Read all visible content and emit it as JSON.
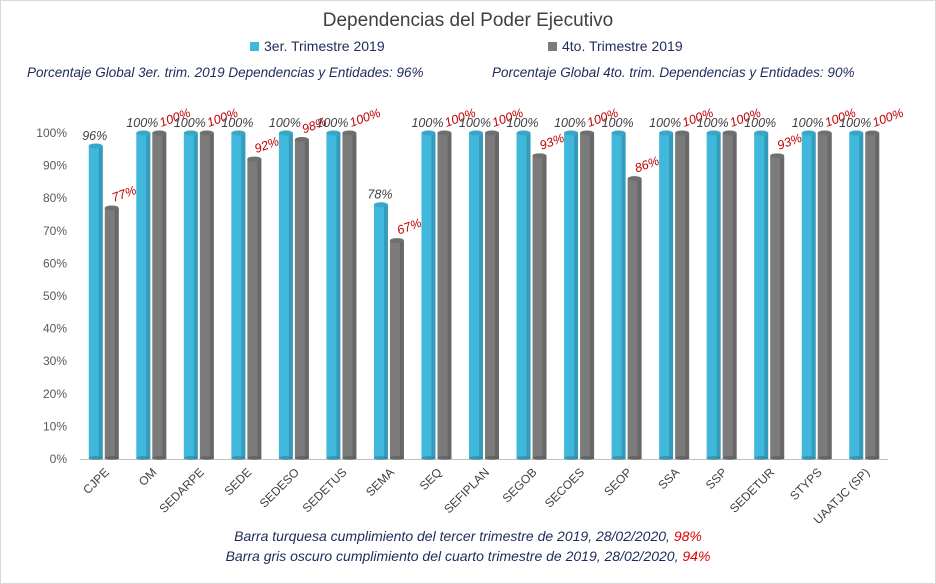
{
  "chart_data": {
    "type": "bar",
    "title": "Dependencias del Poder Ejecutivo",
    "categories": [
      "CJPE",
      "OM",
      "SEDARPE",
      "SEDE",
      "SEDESO",
      "SEDETUS",
      "SEMA",
      "SEQ",
      "SEFIPLAN",
      "SEGOB",
      "SECOES",
      "SEOP",
      "SSA",
      "SSP",
      "SEDETUR",
      "STYPS",
      "UAATJC (SP)"
    ],
    "series": [
      {
        "name": "3er. Trimestre 2019",
        "color": "#3fb8dc",
        "values": [
          96,
          100,
          100,
          100,
          100,
          100,
          78,
          100,
          100,
          100,
          100,
          100,
          100,
          100,
          100,
          100,
          100
        ],
        "labels": [
          "96%",
          "100%",
          "100%",
          "100%",
          "100%",
          "100%",
          "78%",
          "100%",
          "100%",
          "100%",
          "100%",
          "100%",
          "100%",
          "100%",
          "100%",
          "100%",
          "100%"
        ]
      },
      {
        "name": "4to. Trimestre 2019",
        "color": "#7b7b7b",
        "values": [
          77,
          100,
          100,
          92,
          98,
          100,
          67,
          100,
          100,
          93,
          100,
          86,
          100,
          100,
          93,
          100,
          100
        ],
        "labels": [
          "77%",
          "100%",
          "100%",
          "92%",
          "98%",
          "100%",
          "67%",
          "100%",
          "100%",
          "93%",
          "100%",
          "86%",
          "100%",
          "100%",
          "93%",
          "100%",
          "100%"
        ]
      }
    ],
    "yticks": [
      "0%",
      "10%",
      "20%",
      "30%",
      "40%",
      "50%",
      "60%",
      "70%",
      "80%",
      "90%",
      "100%"
    ],
    "ylim": [
      0,
      100
    ],
    "grid": false,
    "legend": "top"
  },
  "global": {
    "q3": "Porcentaje Global 3er. trim. 2019 Dependencias y Entidades: 96%",
    "q4": "Porcentaje Global  4to. trim. Dependencias y Entidades: 90%"
  },
  "footer": {
    "line1": "Barra turquesa  cumplimiento  del tercer trimestre de 2019,  28/02/2020,",
    "line1_value": "98%",
    "line2": "Barra gris oscuro cumplimiento  del cuarto trimestre de 2019,  28/02/2020,",
    "line2_value": "94%"
  }
}
